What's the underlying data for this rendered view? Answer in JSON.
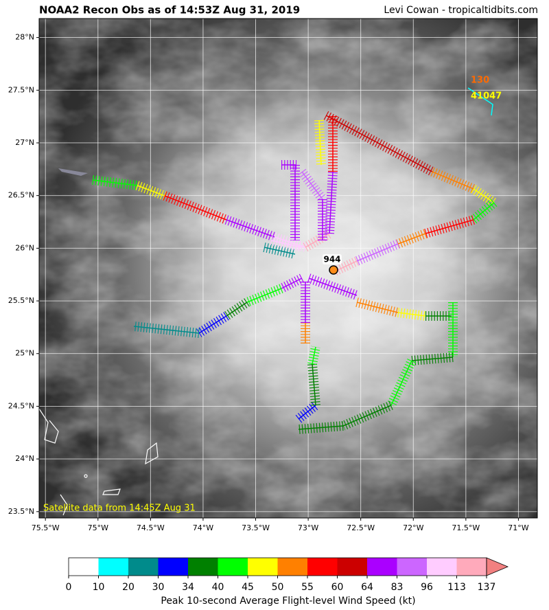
{
  "header": {
    "title": "NOAA2 Recon Obs as of 14:53Z Aug 31, 2019",
    "credit": "Levi Cowan - tropicaltidbits.com"
  },
  "map": {
    "xlim": [
      -75.56,
      -70.82
    ],
    "ylim": [
      23.44,
      28.18
    ],
    "xticks": [
      {
        "value": -75.5,
        "label": "75.5°W"
      },
      {
        "value": -75,
        "label": "75°W"
      },
      {
        "value": -74.5,
        "label": "74.5°W"
      },
      {
        "value": -74,
        "label": "74°W"
      },
      {
        "value": -73.5,
        "label": "73.5°W"
      },
      {
        "value": -73,
        "label": "73°W"
      },
      {
        "value": -72.5,
        "label": "72.5°W"
      },
      {
        "value": -72,
        "label": "72°W"
      },
      {
        "value": -71.5,
        "label": "71.5°W"
      },
      {
        "value": -71,
        "label": "71°W"
      }
    ],
    "yticks": [
      {
        "value": 23.5,
        "label": "23.5°N"
      },
      {
        "value": 24,
        "label": "24°N"
      },
      {
        "value": 24.5,
        "label": "24.5°N"
      },
      {
        "value": 25,
        "label": "25°N"
      },
      {
        "value": 25.5,
        "label": "25.5°N"
      },
      {
        "value": 26,
        "label": "26°N"
      },
      {
        "value": 26.5,
        "label": "26.5°N"
      },
      {
        "value": 27,
        "label": "27°N"
      },
      {
        "value": 27.5,
        "label": "27.5°N"
      },
      {
        "value": 28,
        "label": "28°N"
      }
    ],
    "satellite_note": "Satellite data from 14:45Z Aug 31",
    "center_pressure": "944",
    "buoy_labels": [
      "130",
      "41047"
    ]
  },
  "colorbar": {
    "label": "Peak 10-second Average Flight-level Wind Speed (kt)",
    "bounds": [
      0,
      10,
      20,
      30,
      34,
      40,
      45,
      50,
      55,
      60,
      64,
      83,
      96,
      113,
      137
    ],
    "colors": [
      "#ffffff",
      "#00ffff",
      "#008b8b",
      "#0000ff",
      "#008000",
      "#00ff00",
      "#ffff00",
      "#ff8000",
      "#ff0000",
      "#cc0000",
      "#aa00ff",
      "#cc66ff",
      "#ffccff",
      "#ffaabb"
    ],
    "over_color": "#f28080"
  }
}
